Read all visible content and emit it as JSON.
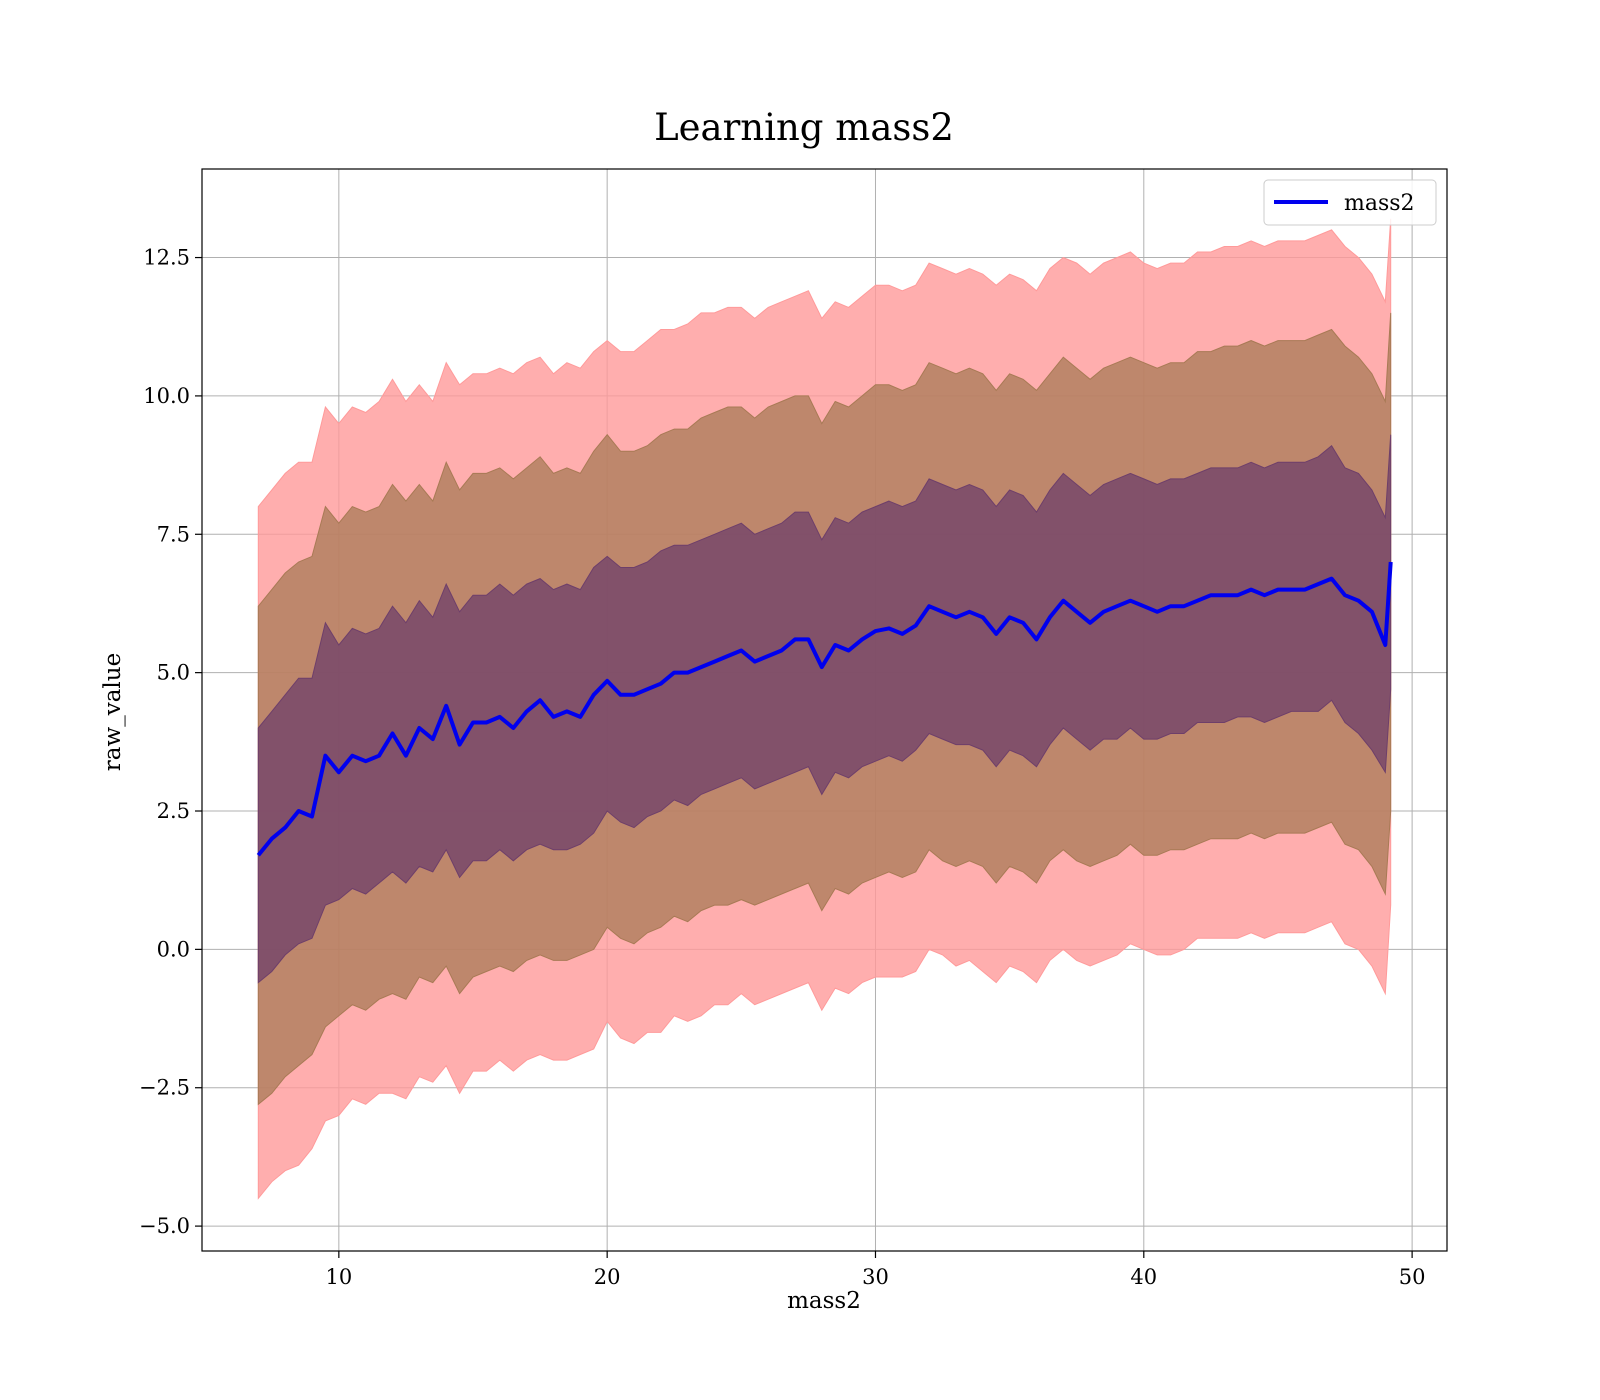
{
  "chart_data": {
    "type": "line",
    "title": "Learning mass2",
    "xlabel": "mass2",
    "ylabel": "raw_value",
    "xlim": [
      4.9,
      51.3
    ],
    "ylim": [
      -5.45,
      14.1
    ],
    "xticks": [
      10,
      20,
      30,
      40,
      50
    ],
    "yticks": [
      -5.0,
      -2.5,
      0.0,
      2.5,
      5.0,
      7.5,
      10.0,
      12.5
    ],
    "xtick_labels": [
      "10",
      "20",
      "30",
      "40",
      "50"
    ],
    "ytick_labels": [
      "−5.0",
      "−2.5",
      "0.0",
      "2.5",
      "5.0",
      "7.5",
      "10.0",
      "12.5"
    ],
    "grid": true,
    "legend": {
      "position": "top-right",
      "entries": [
        "mass2"
      ]
    },
    "colors": {
      "line": "#0000ee",
      "band_outer": "#ff9a9a",
      "band_middle": "#a87a55",
      "band_inner": "#6e3f6a"
    },
    "series": [
      {
        "name": "mass2",
        "x": [
          7.0,
          7.5,
          8.0,
          8.5,
          9.0,
          9.5,
          10.0,
          10.5,
          11.0,
          11.5,
          12.0,
          12.5,
          13.0,
          13.5,
          14.0,
          14.5,
          15.0,
          15.5,
          16.0,
          16.5,
          17.0,
          17.5,
          18.0,
          18.5,
          19.0,
          19.5,
          20.0,
          20.5,
          21.0,
          21.5,
          22.0,
          22.5,
          23.0,
          23.5,
          24.0,
          24.5,
          25.0,
          25.5,
          26.0,
          26.5,
          27.0,
          27.5,
          28.0,
          28.5,
          29.0,
          29.5,
          30.0,
          30.5,
          31.0,
          31.5,
          32.0,
          32.5,
          33.0,
          33.5,
          34.0,
          34.5,
          35.0,
          35.5,
          36.0,
          36.5,
          37.0,
          37.5,
          38.0,
          38.5,
          39.0,
          39.5,
          40.0,
          40.5,
          41.0,
          41.5,
          42.0,
          42.5,
          43.0,
          43.5,
          44.0,
          44.5,
          45.0,
          45.5,
          46.0,
          46.5,
          47.0,
          47.5,
          48.0,
          48.5,
          49.0,
          49.2
        ],
        "y": [
          1.7,
          2.0,
          2.2,
          2.5,
          2.4,
          3.5,
          3.2,
          3.5,
          3.4,
          3.5,
          3.9,
          3.5,
          4.0,
          3.8,
          4.4,
          3.7,
          4.1,
          4.1,
          4.2,
          4.0,
          4.3,
          4.5,
          4.2,
          4.3,
          4.2,
          4.6,
          4.85,
          4.6,
          4.6,
          4.7,
          4.8,
          5.0,
          5.0,
          5.1,
          5.2,
          5.3,
          5.4,
          5.2,
          5.3,
          5.4,
          5.6,
          5.6,
          5.1,
          5.5,
          5.4,
          5.6,
          5.75,
          5.8,
          5.7,
          5.85,
          6.2,
          6.1,
          6.0,
          6.1,
          6.0,
          5.7,
          6.0,
          5.9,
          5.6,
          6.0,
          6.3,
          6.1,
          5.9,
          6.1,
          6.2,
          6.3,
          6.2,
          6.1,
          6.2,
          6.2,
          6.3,
          6.4,
          6.4,
          6.4,
          6.5,
          6.4,
          6.5,
          6.5,
          6.5,
          6.6,
          6.7,
          6.4,
          6.3,
          6.1,
          5.5,
          7.0
        ]
      }
    ],
    "bands": [
      {
        "name": "outer",
        "lower": [
          -4.5,
          -4.2,
          -4.0,
          -3.9,
          -3.6,
          -3.1,
          -3.0,
          -2.7,
          -2.8,
          -2.6,
          -2.6,
          -2.7,
          -2.3,
          -2.4,
          -2.1,
          -2.6,
          -2.2,
          -2.2,
          -2.0,
          -2.2,
          -2.0,
          -1.9,
          -2.0,
          -2.0,
          -1.9,
          -1.8,
          -1.3,
          -1.6,
          -1.7,
          -1.5,
          -1.5,
          -1.2,
          -1.3,
          -1.2,
          -1.0,
          -1.0,
          -0.8,
          -1.0,
          -0.9,
          -0.8,
          -0.7,
          -0.6,
          -1.1,
          -0.7,
          -0.8,
          -0.6,
          -0.5,
          -0.5,
          -0.5,
          -0.4,
          0.0,
          -0.1,
          -0.3,
          -0.2,
          -0.4,
          -0.6,
          -0.3,
          -0.4,
          -0.6,
          -0.2,
          0.0,
          -0.2,
          -0.3,
          -0.2,
          -0.1,
          0.1,
          0.0,
          -0.1,
          -0.1,
          0.0,
          0.2,
          0.2,
          0.2,
          0.2,
          0.3,
          0.2,
          0.3,
          0.3,
          0.3,
          0.4,
          0.5,
          0.1,
          0.0,
          -0.3,
          -0.8,
          0.8
        ],
        "upper": [
          8.0,
          8.3,
          8.6,
          8.8,
          8.8,
          9.8,
          9.5,
          9.8,
          9.7,
          9.9,
          10.3,
          9.9,
          10.2,
          9.9,
          10.6,
          10.2,
          10.4,
          10.4,
          10.5,
          10.4,
          10.6,
          10.7,
          10.4,
          10.6,
          10.5,
          10.8,
          11.0,
          10.8,
          10.8,
          11.0,
          11.2,
          11.2,
          11.3,
          11.5,
          11.5,
          11.6,
          11.6,
          11.4,
          11.6,
          11.7,
          11.8,
          11.9,
          11.4,
          11.7,
          11.6,
          11.8,
          12.0,
          12.0,
          11.9,
          12.0,
          12.4,
          12.3,
          12.2,
          12.3,
          12.2,
          12.0,
          12.2,
          12.1,
          11.9,
          12.3,
          12.5,
          12.4,
          12.2,
          12.4,
          12.5,
          12.6,
          12.4,
          12.3,
          12.4,
          12.4,
          12.6,
          12.6,
          12.7,
          12.7,
          12.8,
          12.7,
          12.8,
          12.8,
          12.8,
          12.9,
          13.0,
          12.7,
          12.5,
          12.2,
          11.7,
          13.2
        ]
      },
      {
        "name": "middle",
        "lower": [
          -2.8,
          -2.6,
          -2.3,
          -2.1,
          -1.9,
          -1.4,
          -1.2,
          -1.0,
          -1.1,
          -0.9,
          -0.8,
          -0.9,
          -0.5,
          -0.6,
          -0.3,
          -0.8,
          -0.5,
          -0.4,
          -0.3,
          -0.4,
          -0.2,
          -0.1,
          -0.2,
          -0.2,
          -0.1,
          0.0,
          0.4,
          0.2,
          0.1,
          0.3,
          0.4,
          0.6,
          0.5,
          0.7,
          0.8,
          0.8,
          0.9,
          0.8,
          0.9,
          1.0,
          1.1,
          1.2,
          0.7,
          1.1,
          1.0,
          1.2,
          1.3,
          1.4,
          1.3,
          1.4,
          1.8,
          1.6,
          1.5,
          1.6,
          1.5,
          1.2,
          1.5,
          1.4,
          1.2,
          1.6,
          1.8,
          1.6,
          1.5,
          1.6,
          1.7,
          1.9,
          1.7,
          1.7,
          1.8,
          1.8,
          1.9,
          2.0,
          2.0,
          2.0,
          2.1,
          2.0,
          2.1,
          2.1,
          2.1,
          2.2,
          2.3,
          1.9,
          1.8,
          1.5,
          1.0,
          2.5
        ],
        "upper": [
          6.2,
          6.5,
          6.8,
          7.0,
          7.1,
          8.0,
          7.7,
          8.0,
          7.9,
          8.0,
          8.4,
          8.1,
          8.4,
          8.1,
          8.8,
          8.3,
          8.6,
          8.6,
          8.7,
          8.5,
          8.7,
          8.9,
          8.6,
          8.7,
          8.6,
          9.0,
          9.3,
          9.0,
          9.0,
          9.1,
          9.3,
          9.4,
          9.4,
          9.6,
          9.7,
          9.8,
          9.8,
          9.6,
          9.8,
          9.9,
          10.0,
          10.0,
          9.5,
          9.9,
          9.8,
          10.0,
          10.2,
          10.2,
          10.1,
          10.2,
          10.6,
          10.5,
          10.4,
          10.5,
          10.4,
          10.1,
          10.4,
          10.3,
          10.1,
          10.4,
          10.7,
          10.5,
          10.3,
          10.5,
          10.6,
          10.7,
          10.6,
          10.5,
          10.6,
          10.6,
          10.8,
          10.8,
          10.9,
          10.9,
          11.0,
          10.9,
          11.0,
          11.0,
          11.0,
          11.1,
          11.2,
          10.9,
          10.7,
          10.4,
          9.9,
          11.5
        ]
      },
      {
        "name": "inner",
        "lower": [
          -0.6,
          -0.4,
          -0.1,
          0.1,
          0.2,
          0.8,
          0.9,
          1.1,
          1.0,
          1.2,
          1.4,
          1.2,
          1.5,
          1.4,
          1.8,
          1.3,
          1.6,
          1.6,
          1.8,
          1.6,
          1.8,
          1.9,
          1.8,
          1.8,
          1.9,
          2.1,
          2.5,
          2.3,
          2.2,
          2.4,
          2.5,
          2.7,
          2.6,
          2.8,
          2.9,
          3.0,
          3.1,
          2.9,
          3.0,
          3.1,
          3.2,
          3.3,
          2.8,
          3.2,
          3.1,
          3.3,
          3.4,
          3.5,
          3.4,
          3.6,
          3.9,
          3.8,
          3.7,
          3.7,
          3.6,
          3.3,
          3.6,
          3.5,
          3.3,
          3.7,
          4.0,
          3.8,
          3.6,
          3.8,
          3.8,
          4.0,
          3.8,
          3.8,
          3.9,
          3.9,
          4.1,
          4.1,
          4.1,
          4.2,
          4.2,
          4.1,
          4.2,
          4.3,
          4.3,
          4.3,
          4.5,
          4.1,
          3.9,
          3.6,
          3.2,
          4.7
        ],
        "upper": [
          4.0,
          4.3,
          4.6,
          4.9,
          4.9,
          5.9,
          5.5,
          5.8,
          5.7,
          5.8,
          6.2,
          5.9,
          6.3,
          6.0,
          6.6,
          6.1,
          6.4,
          6.4,
          6.6,
          6.4,
          6.6,
          6.7,
          6.5,
          6.6,
          6.5,
          6.9,
          7.1,
          6.9,
          6.9,
          7.0,
          7.2,
          7.3,
          7.3,
          7.4,
          7.5,
          7.6,
          7.7,
          7.5,
          7.6,
          7.7,
          7.9,
          7.9,
          7.4,
          7.8,
          7.7,
          7.9,
          8.0,
          8.1,
          8.0,
          8.1,
          8.5,
          8.4,
          8.3,
          8.4,
          8.3,
          8.0,
          8.3,
          8.2,
          7.9,
          8.3,
          8.6,
          8.4,
          8.2,
          8.4,
          8.5,
          8.6,
          8.5,
          8.4,
          8.5,
          8.5,
          8.6,
          8.7,
          8.7,
          8.7,
          8.8,
          8.7,
          8.8,
          8.8,
          8.8,
          8.9,
          9.1,
          8.7,
          8.6,
          8.3,
          7.8,
          9.3
        ]
      }
    ]
  }
}
